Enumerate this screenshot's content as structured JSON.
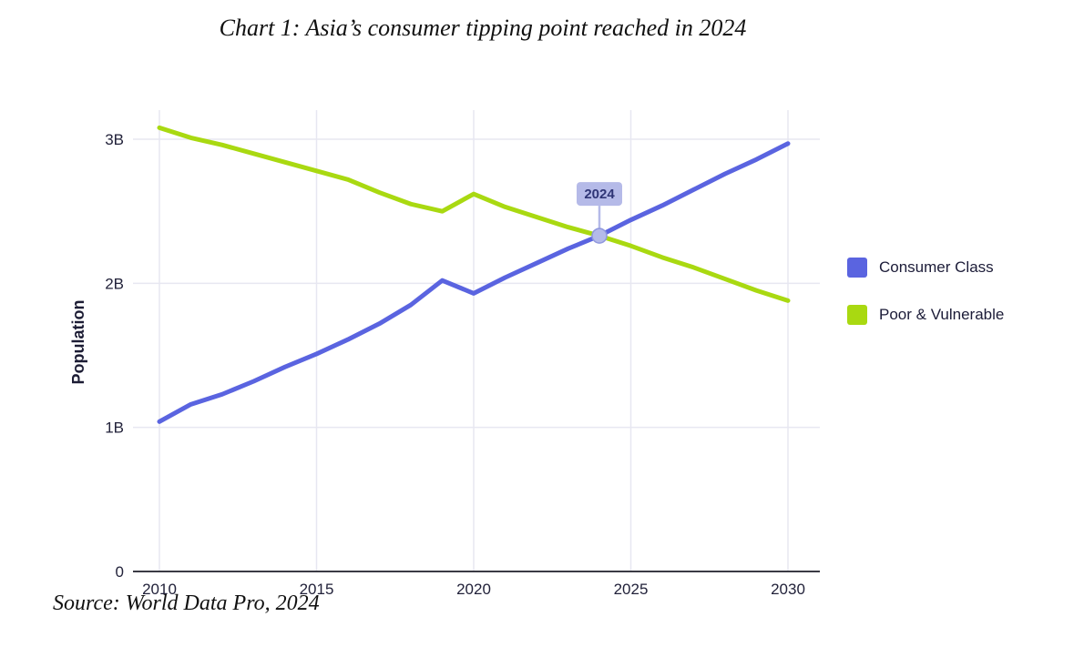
{
  "chart_data": {
    "type": "line",
    "title": "Chart 1: Asia’s consumer tipping point reached in 2024",
    "ylabel": "Population",
    "source": "Source: World Data Pro, 2024",
    "unit": "billions of people",
    "x": [
      2010,
      2011,
      2012,
      2013,
      2014,
      2015,
      2016,
      2017,
      2018,
      2019,
      2020,
      2021,
      2022,
      2023,
      2024,
      2025,
      2026,
      2027,
      2028,
      2029,
      2030
    ],
    "xticks": [
      2010,
      2015,
      2020,
      2025,
      2030
    ],
    "yticks": [
      {
        "value": 0,
        "label": "0"
      },
      {
        "value": 1,
        "label": "1B"
      },
      {
        "value": 2,
        "label": "2B"
      },
      {
        "value": 3,
        "label": "3B"
      }
    ],
    "ylim": [
      0,
      3.2
    ],
    "grid": true,
    "legend_position": "right",
    "series": [
      {
        "name": "Consumer Class",
        "color": "#5A64E0",
        "values": [
          1.04,
          1.16,
          1.23,
          1.32,
          1.42,
          1.51,
          1.61,
          1.72,
          1.85,
          2.02,
          1.93,
          2.04,
          2.14,
          2.24,
          2.33,
          2.44,
          2.54,
          2.65,
          2.76,
          2.86,
          2.97
        ]
      },
      {
        "name": "Poor & Vulnerable",
        "color": "#A9D911",
        "values": [
          3.08,
          3.01,
          2.96,
          2.9,
          2.84,
          2.78,
          2.72,
          2.63,
          2.55,
          2.5,
          2.62,
          2.53,
          2.46,
          2.39,
          2.33,
          2.26,
          2.18,
          2.11,
          2.03,
          1.95,
          1.88
        ]
      }
    ],
    "annotation": {
      "label": "2024",
      "x": 2024,
      "y": 2.33,
      "badge_fill": "#B5BAE8",
      "marker_fill": "#B4BAE9",
      "marker_stroke": "#8F97DD"
    }
  }
}
